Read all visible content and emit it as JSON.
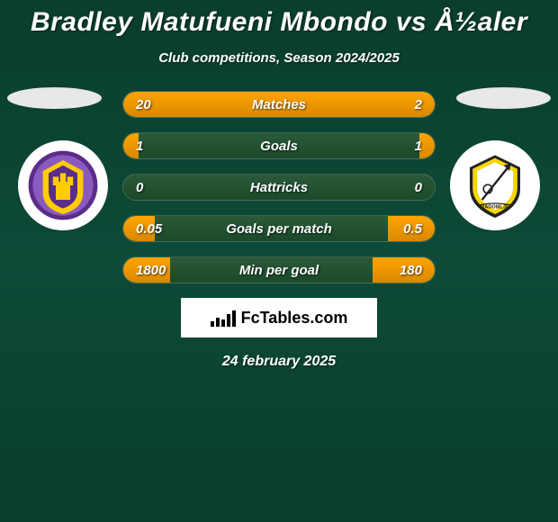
{
  "colors": {
    "background_gradient": [
      "#0a3d2e",
      "#0d4a38",
      "#0a3d2e"
    ],
    "bar_bg_gradient": [
      "#2a5a3a",
      "#1a4a2a"
    ],
    "bar_fill_gradient": [
      "#ffa500",
      "#d98800"
    ],
    "text_main": "#ffffff",
    "brand_bg": "#ffffff",
    "brand_text": "#000000",
    "logo_bg": "#ffffff"
  },
  "title": "Bradley Matufueni Mbondo vs Å½aler",
  "subtitle": "Club competitions, Season 2024/2025",
  "date": "24 february 2025",
  "brand": "FcTables.com",
  "team_left": {
    "name": "NK Maribor",
    "badge_colors": {
      "outer": "#5a2d8a",
      "inner": "#ffcc00",
      "accent": "#8a5abf"
    }
  },
  "team_right": {
    "name": "Radomlje",
    "badge_colors": {
      "outer": "#f5d700",
      "inner": "#222222",
      "accent": "#ffffff"
    }
  },
  "stats": [
    {
      "label": "Matches",
      "left_val": "20",
      "right_val": "2",
      "left_pct": 50,
      "right_pct": 50
    },
    {
      "label": "Goals",
      "left_val": "1",
      "right_val": "1",
      "left_pct": 5,
      "right_pct": 5
    },
    {
      "label": "Hattricks",
      "left_val": "0",
      "right_val": "0",
      "left_pct": 0,
      "right_pct": 0
    },
    {
      "label": "Goals per match",
      "left_val": "0.05",
      "right_val": "0.5",
      "left_pct": 10,
      "right_pct": 15
    },
    {
      "label": "Min per goal",
      "left_val": "1800",
      "right_val": "180",
      "left_pct": 15,
      "right_pct": 20
    }
  ],
  "brand_chart_bars": [
    6,
    10,
    8,
    14,
    18
  ]
}
